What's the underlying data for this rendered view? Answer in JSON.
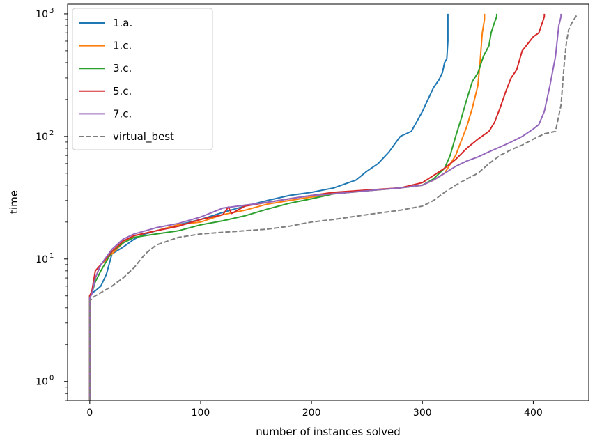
{
  "chart_data": {
    "type": "line",
    "xlabel": "number of instances solved",
    "ylabel": "time",
    "xlim": [
      -20,
      450
    ],
    "ylim": [
      0.7,
      1200
    ],
    "yscale": "log",
    "grid": false,
    "legend_position": "top-left",
    "x_ticks": [
      {
        "value": 0,
        "label": "0"
      },
      {
        "value": 100,
        "label": "100"
      },
      {
        "value": 200,
        "label": "200"
      },
      {
        "value": 300,
        "label": "300"
      },
      {
        "value": 400,
        "label": "400"
      }
    ],
    "y_ticks": [
      {
        "value": 1,
        "base": "10",
        "exp": "0"
      },
      {
        "value": 10,
        "base": "10",
        "exp": "1"
      },
      {
        "value": 100,
        "base": "10",
        "exp": "2"
      },
      {
        "value": 1000,
        "base": "10",
        "exp": "3"
      }
    ],
    "series": [
      {
        "name": "1.a.",
        "color": "#1f77b4",
        "dash": false,
        "x": [
          0,
          0,
          1,
          5,
          10,
          15,
          20,
          30,
          40,
          50,
          60,
          80,
          100,
          120,
          140,
          160,
          180,
          200,
          220,
          240,
          250,
          260,
          270,
          280,
          290,
          300,
          305,
          310,
          315,
          318,
          320,
          322,
          323,
          323
        ],
        "y": [
          0.7,
          5.0,
          5.2,
          5.5,
          6.0,
          7.5,
          11.0,
          12.5,
          14.5,
          16.0,
          17.0,
          19.0,
          21.0,
          24.0,
          27.0,
          30.0,
          33.0,
          35.0,
          38.0,
          44.0,
          52.0,
          60.0,
          75.0,
          100.0,
          110.0,
          160.0,
          200.0,
          250.0,
          290.0,
          330.0,
          400.0,
          430.0,
          600.0,
          1000.0
        ]
      },
      {
        "name": "1.c.",
        "color": "#ff7f0e",
        "dash": false,
        "x": [
          0,
          0,
          2,
          5,
          10,
          20,
          30,
          40,
          60,
          80,
          100,
          120,
          140,
          160,
          180,
          200,
          220,
          250,
          280,
          300,
          310,
          320,
          330,
          340,
          345,
          350,
          352,
          354,
          356,
          356
        ],
        "y": [
          0.7,
          5.0,
          5.5,
          7.0,
          9.0,
          11.0,
          13.5,
          15.5,
          17.0,
          19.0,
          20.0,
          23.0,
          25.0,
          28.0,
          30.0,
          32.0,
          34.0,
          36.0,
          38.0,
          40.0,
          44.0,
          50.0,
          70.0,
          120.0,
          170.0,
          260.0,
          400.0,
          700.0,
          900.0,
          1000.0
        ]
      },
      {
        "name": "3.c.",
        "color": "#2ca02c",
        "dash": false,
        "x": [
          0,
          0,
          2,
          5,
          10,
          20,
          30,
          40,
          60,
          80,
          100,
          120,
          140,
          160,
          180,
          200,
          220,
          250,
          280,
          300,
          310,
          320,
          325,
          330,
          335,
          340,
          345,
          350,
          355,
          360,
          362,
          365,
          367,
          367
        ],
        "y": [
          0.7,
          5.0,
          5.3,
          6.5,
          8.0,
          11.5,
          13.5,
          15.0,
          16.0,
          17.0,
          19.0,
          20.5,
          22.5,
          25.5,
          28.5,
          31.0,
          34.0,
          36.0,
          38.0,
          40.0,
          45.0,
          55.0,
          70.0,
          100.0,
          140.0,
          200.0,
          280.0,
          330.0,
          450.0,
          550.0,
          700.0,
          850.0,
          950.0,
          1000.0
        ]
      },
      {
        "name": "5.c.",
        "color": "#d62728",
        "dash": false,
        "x": [
          0,
          0,
          2,
          5,
          10,
          20,
          30,
          40,
          60,
          80,
          100,
          120,
          125,
          128,
          140,
          160,
          180,
          200,
          220,
          250,
          280,
          300,
          310,
          320,
          330,
          340,
          350,
          360,
          365,
          370,
          375,
          380,
          385,
          390,
          400,
          405,
          410,
          410
        ],
        "y": [
          0.7,
          5.0,
          5.5,
          8.0,
          9.0,
          11.5,
          14.0,
          15.5,
          17.0,
          18.5,
          21.0,
          23.0,
          26.5,
          23.5,
          27.0,
          29.0,
          31.0,
          33.0,
          35.0,
          36.5,
          38.0,
          42.0,
          48.0,
          55.0,
          65.0,
          80.0,
          95.0,
          110.0,
          130.0,
          170.0,
          230.0,
          300.0,
          350.0,
          500.0,
          650.0,
          700.0,
          950.0,
          1000.0
        ]
      },
      {
        "name": "7.c.",
        "color": "#9467bd",
        "dash": false,
        "x": [
          0,
          0,
          2,
          5,
          10,
          20,
          30,
          40,
          60,
          80,
          100,
          120,
          140,
          160,
          180,
          200,
          220,
          250,
          280,
          300,
          310,
          320,
          330,
          340,
          350,
          360,
          370,
          380,
          390,
          400,
          405,
          410,
          415,
          420,
          423,
          425,
          425
        ],
        "y": [
          0.7,
          4.8,
          5.2,
          7.0,
          9.0,
          12.0,
          14.5,
          16.0,
          18.0,
          19.5,
          22.0,
          26.0,
          27.5,
          29.0,
          31.0,
          33.0,
          34.0,
          36.0,
          38.0,
          40.0,
          44.0,
          50.0,
          57.0,
          63.0,
          68.0,
          75.0,
          82.0,
          90.0,
          100.0,
          115.0,
          125.0,
          160.0,
          260.0,
          450.0,
          800.0,
          950.0,
          1000.0
        ]
      },
      {
        "name": "virtual_best",
        "color": "#7f7f7f",
        "dash": true,
        "x": [
          0,
          0,
          2,
          5,
          10,
          20,
          30,
          40,
          50,
          60,
          80,
          100,
          120,
          140,
          160,
          180,
          200,
          220,
          250,
          280,
          300,
          310,
          320,
          330,
          340,
          350,
          360,
          370,
          380,
          390,
          400,
          410,
          420,
          425,
          428,
          430,
          432,
          435,
          440
        ],
        "y": [
          0.7,
          4.5,
          4.8,
          5.0,
          5.3,
          6.0,
          7.0,
          8.5,
          11.0,
          13.0,
          15.0,
          16.0,
          16.5,
          17.0,
          17.5,
          18.5,
          20.0,
          21.0,
          23.0,
          25.0,
          27.0,
          30.0,
          35.0,
          40.0,
          45.0,
          50.0,
          60.0,
          70.0,
          78.0,
          85.0,
          95.0,
          105.0,
          110.0,
          180.0,
          400.0,
          600.0,
          750.0,
          850.0,
          1000.0
        ]
      }
    ]
  }
}
